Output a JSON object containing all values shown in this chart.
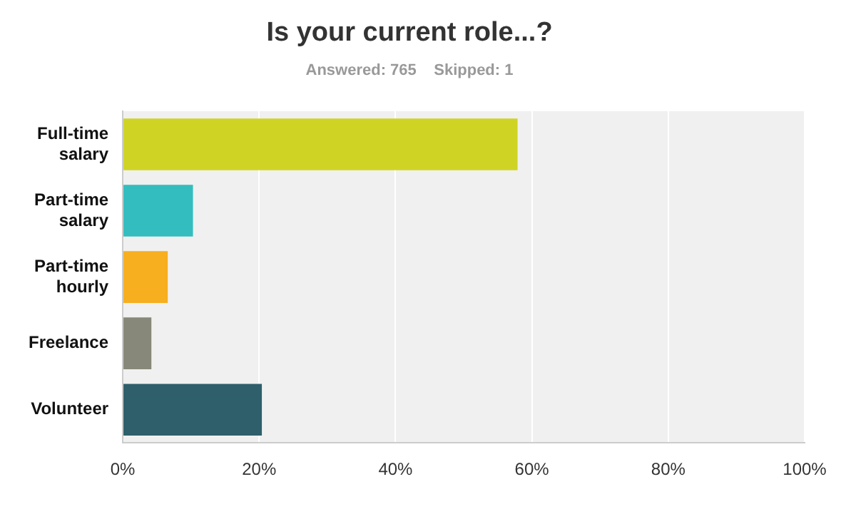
{
  "chart_data": {
    "type": "bar",
    "orientation": "horizontal",
    "title": "Is your current role...?",
    "subtitle": "Answered: 765    Skipped: 1",
    "categories": [
      "Full-time salary",
      "Part-time salary",
      "Part-time hourly",
      "Freelance",
      "Volunteer"
    ],
    "values": [
      57.9,
      10.3,
      6.6,
      4.2,
      20.4
    ],
    "colors": [
      "#cfd424",
      "#33bdbf",
      "#f7ae1f",
      "#88887a",
      "#2e5f6b"
    ],
    "xlim": [
      0,
      100
    ],
    "xticks": [
      {
        "value": 0,
        "label": "0%"
      },
      {
        "value": 20,
        "label": "20%"
      },
      {
        "value": 40,
        "label": "40%"
      },
      {
        "value": 60,
        "label": "60%"
      },
      {
        "value": 80,
        "label": "80%"
      },
      {
        "value": 100,
        "label": "100%"
      }
    ],
    "grid": "x",
    "legend": false
  }
}
